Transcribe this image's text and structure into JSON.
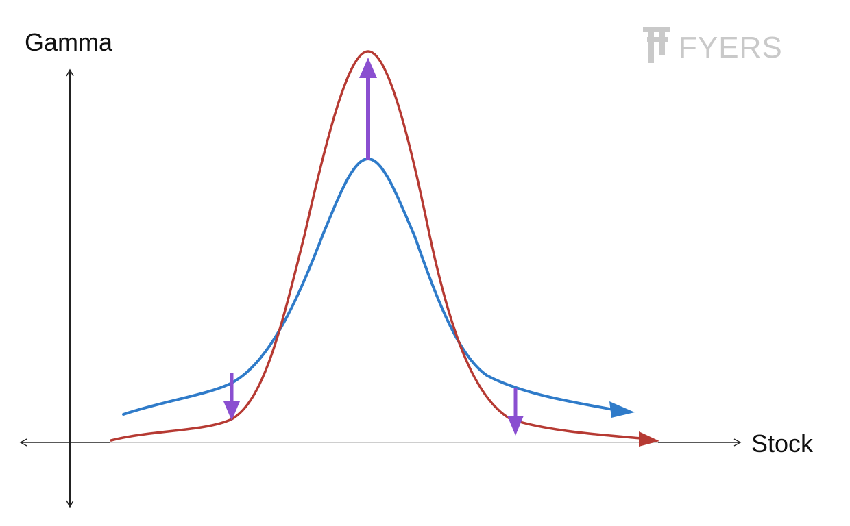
{
  "labels": {
    "y_axis": "Gamma",
    "x_axis": "Stock"
  },
  "logo": {
    "text": "FYERS"
  },
  "colors": {
    "axis": "#222222",
    "baseline": "#bdbdbd",
    "curve_before": "#2f7bc9",
    "curve_after": "#b63a33",
    "change_arrow": "#8a4fd0",
    "logo": "#c9c9c9"
  }
}
